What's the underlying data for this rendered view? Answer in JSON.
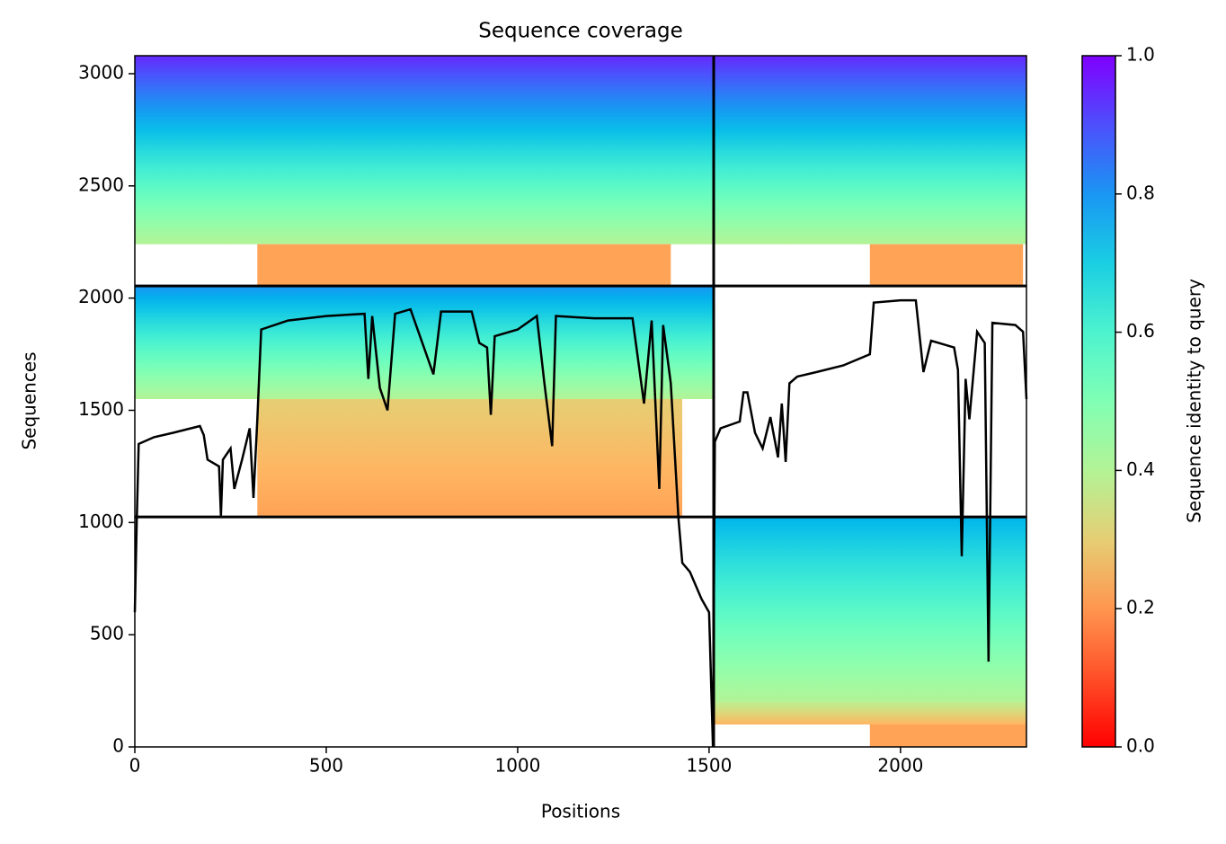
{
  "chart_data": {
    "type": "heatmap",
    "title": "Sequence coverage",
    "xlabel": "Positions",
    "ylabel": "Sequences",
    "colorbar_label": "Sequence identity to query",
    "colormap": "rainbow_r",
    "xlim": [
      0,
      2329
    ],
    "ylim": [
      0,
      3080
    ],
    "xticks": [
      0,
      500,
      1000,
      1500,
      2000
    ],
    "yticks": [
      0,
      500,
      1000,
      1500,
      2000,
      2500,
      3000
    ],
    "clim": [
      0,
      1
    ],
    "cticks": [
      {
        "value": 0,
        "label": "0.0"
      },
      0.2,
      0.4,
      0.6,
      0.8,
      {
        "value": 1,
        "label": "1.0"
      }
    ],
    "bands": [
      {
        "x": [
          0,
          2329
        ],
        "y": [
          2240,
          3080
        ],
        "identity": [
          0.4,
          0.95
        ]
      },
      {
        "x": [
          320,
          1400
        ],
        "y": [
          2054,
          2240
        ],
        "identity": [
          0.22,
          0.22
        ]
      },
      {
        "x": [
          1920,
          2320
        ],
        "y": [
          2054,
          2240
        ],
        "identity": [
          0.22,
          0.22
        ]
      },
      {
        "x": [
          0,
          1512
        ],
        "y": [
          1550,
          2054
        ],
        "identity": [
          0.4,
          0.8
        ]
      },
      {
        "x": [
          320,
          1430
        ],
        "y": [
          1025,
          1550
        ],
        "identity": [
          0.22,
          0.3
        ]
      },
      {
        "x": [
          1512,
          2329
        ],
        "y": [
          200,
          1025
        ],
        "identity": [
          0.4,
          0.75
        ]
      },
      {
        "x": [
          1512,
          2329
        ],
        "y": [
          100,
          200
        ],
        "identity": [
          0.25,
          0.38
        ]
      },
      {
        "x": [
          1920,
          2329
        ],
        "y": [
          0,
          100
        ],
        "identity": [
          0.22,
          0.22
        ]
      }
    ],
    "dividers": {
      "x": [
        1512
      ],
      "y": [
        1025,
        2054
      ]
    },
    "coverage": {
      "color": "#000000",
      "x": [
        0,
        5,
        10,
        50,
        100,
        170,
        180,
        190,
        220,
        225,
        230,
        250,
        260,
        280,
        300,
        310,
        320,
        330,
        400,
        500,
        600,
        610,
        620,
        640,
        660,
        680,
        720,
        780,
        800,
        880,
        900,
        920,
        930,
        940,
        1000,
        1050,
        1070,
        1090,
        1100,
        1200,
        1300,
        1330,
        1350,
        1370,
        1380,
        1400,
        1420,
        1430,
        1450,
        1480,
        1500,
        1510,
        1515,
        1530,
        1580,
        1590,
        1600,
        1620,
        1640,
        1660,
        1680,
        1690,
        1700,
        1710,
        1730,
        1780,
        1850,
        1920,
        1930,
        2000,
        2040,
        2060,
        2080,
        2100,
        2140,
        2150,
        2160,
        2170,
        2180,
        2200,
        2220,
        2230,
        2240,
        2300,
        2320,
        2329
      ],
      "values": [
        600,
        1000,
        1350,
        1380,
        1400,
        1430,
        1390,
        1280,
        1250,
        1030,
        1280,
        1330,
        1150,
        1280,
        1420,
        1110,
        1460,
        1860,
        1900,
        1920,
        1930,
        1640,
        1920,
        1600,
        1500,
        1930,
        1950,
        1660,
        1940,
        1940,
        1800,
        1780,
        1480,
        1830,
        1860,
        1920,
        1620,
        1340,
        1920,
        1910,
        1910,
        1530,
        1900,
        1150,
        1880,
        1620,
        1020,
        820,
        780,
        660,
        600,
        0,
        1360,
        1420,
        1450,
        1580,
        1580,
        1400,
        1330,
        1470,
        1290,
        1530,
        1270,
        1620,
        1650,
        1670,
        1700,
        1750,
        1980,
        1990,
        1990,
        1670,
        1810,
        1800,
        1780,
        1680,
        850,
        1640,
        1460,
        1850,
        1800,
        380,
        1890,
        1880,
        1850,
        1550
      ]
    }
  }
}
